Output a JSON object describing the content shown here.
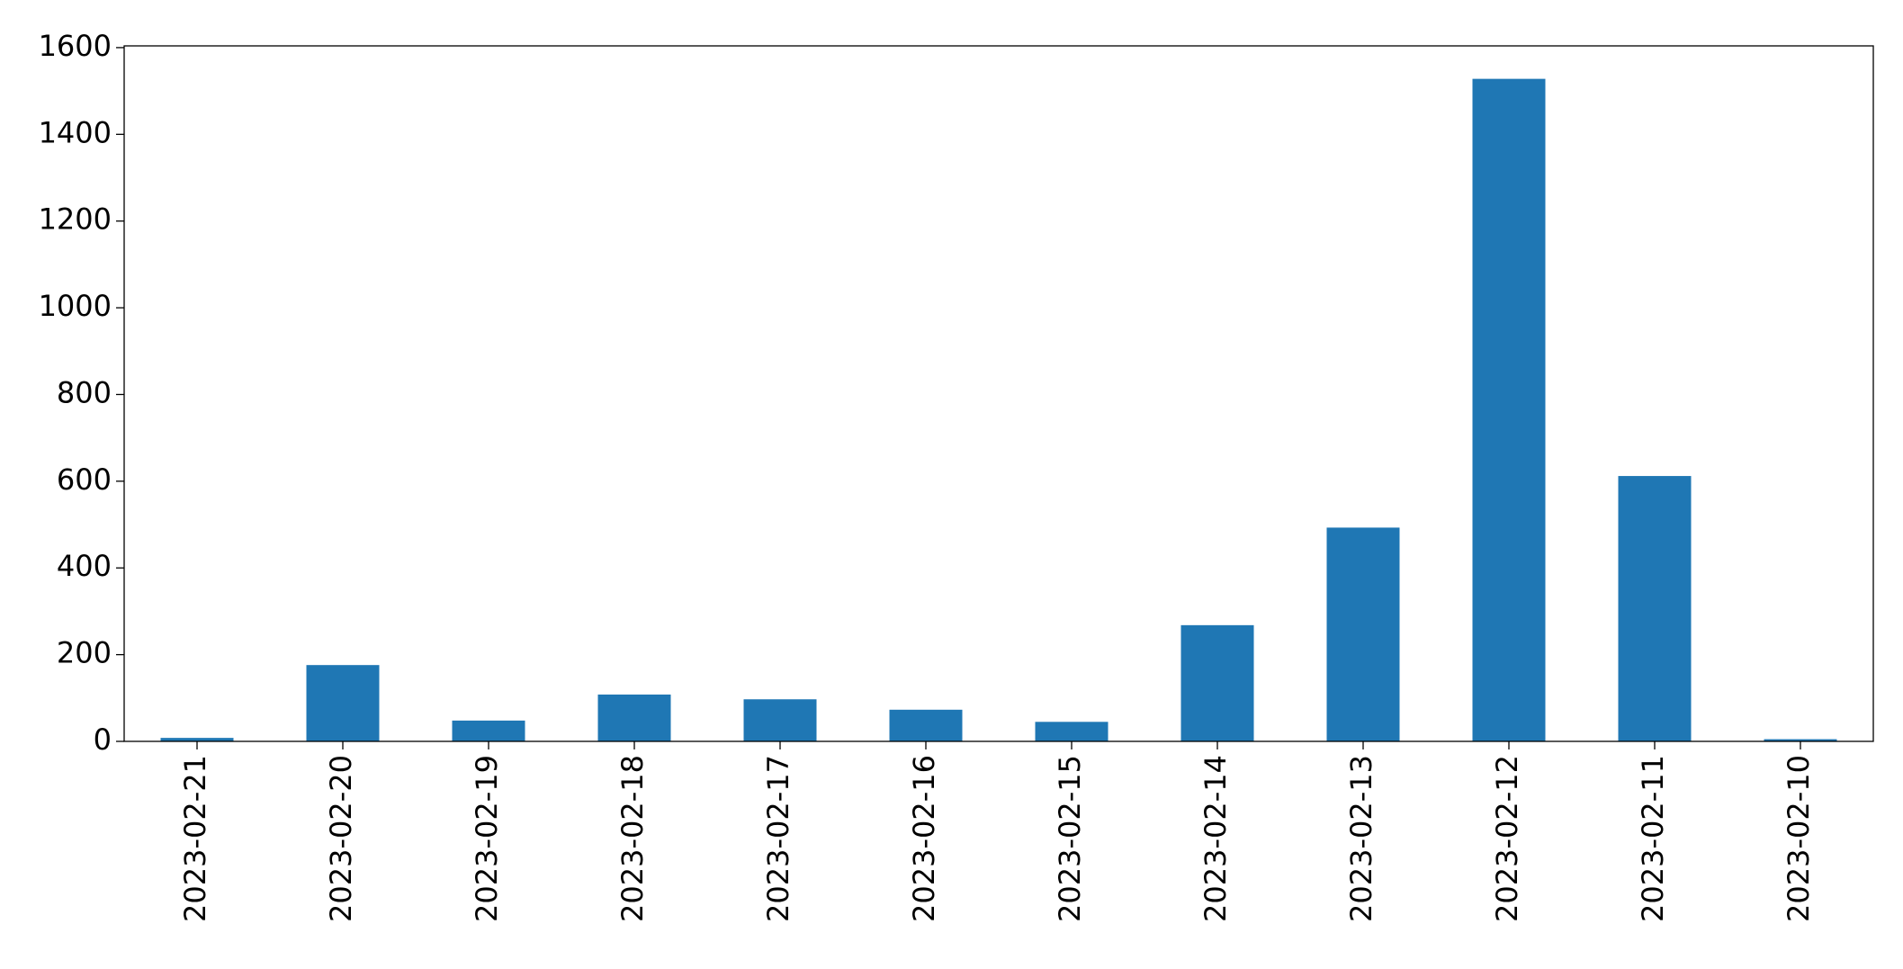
{
  "chart_data": {
    "type": "bar",
    "title": "",
    "xlabel": "",
    "ylabel": "",
    "categories": [
      "2023-02-21",
      "2023-02-20",
      "2023-02-19",
      "2023-02-18",
      "2023-02-17",
      "2023-02-16",
      "2023-02-15",
      "2023-02-14",
      "2023-02-13",
      "2023-02-12",
      "2023-02-11",
      "2023-02-10"
    ],
    "values": [
      8,
      176,
      48,
      108,
      97,
      73,
      45,
      268,
      493,
      1528,
      612,
      5
    ],
    "ylim": [
      0,
      1604
    ],
    "yticks": [
      0,
      200,
      400,
      600,
      800,
      1000,
      1200,
      1400,
      1600
    ],
    "grid": false,
    "legend": "none",
    "bar_color": "#1f77b4"
  }
}
